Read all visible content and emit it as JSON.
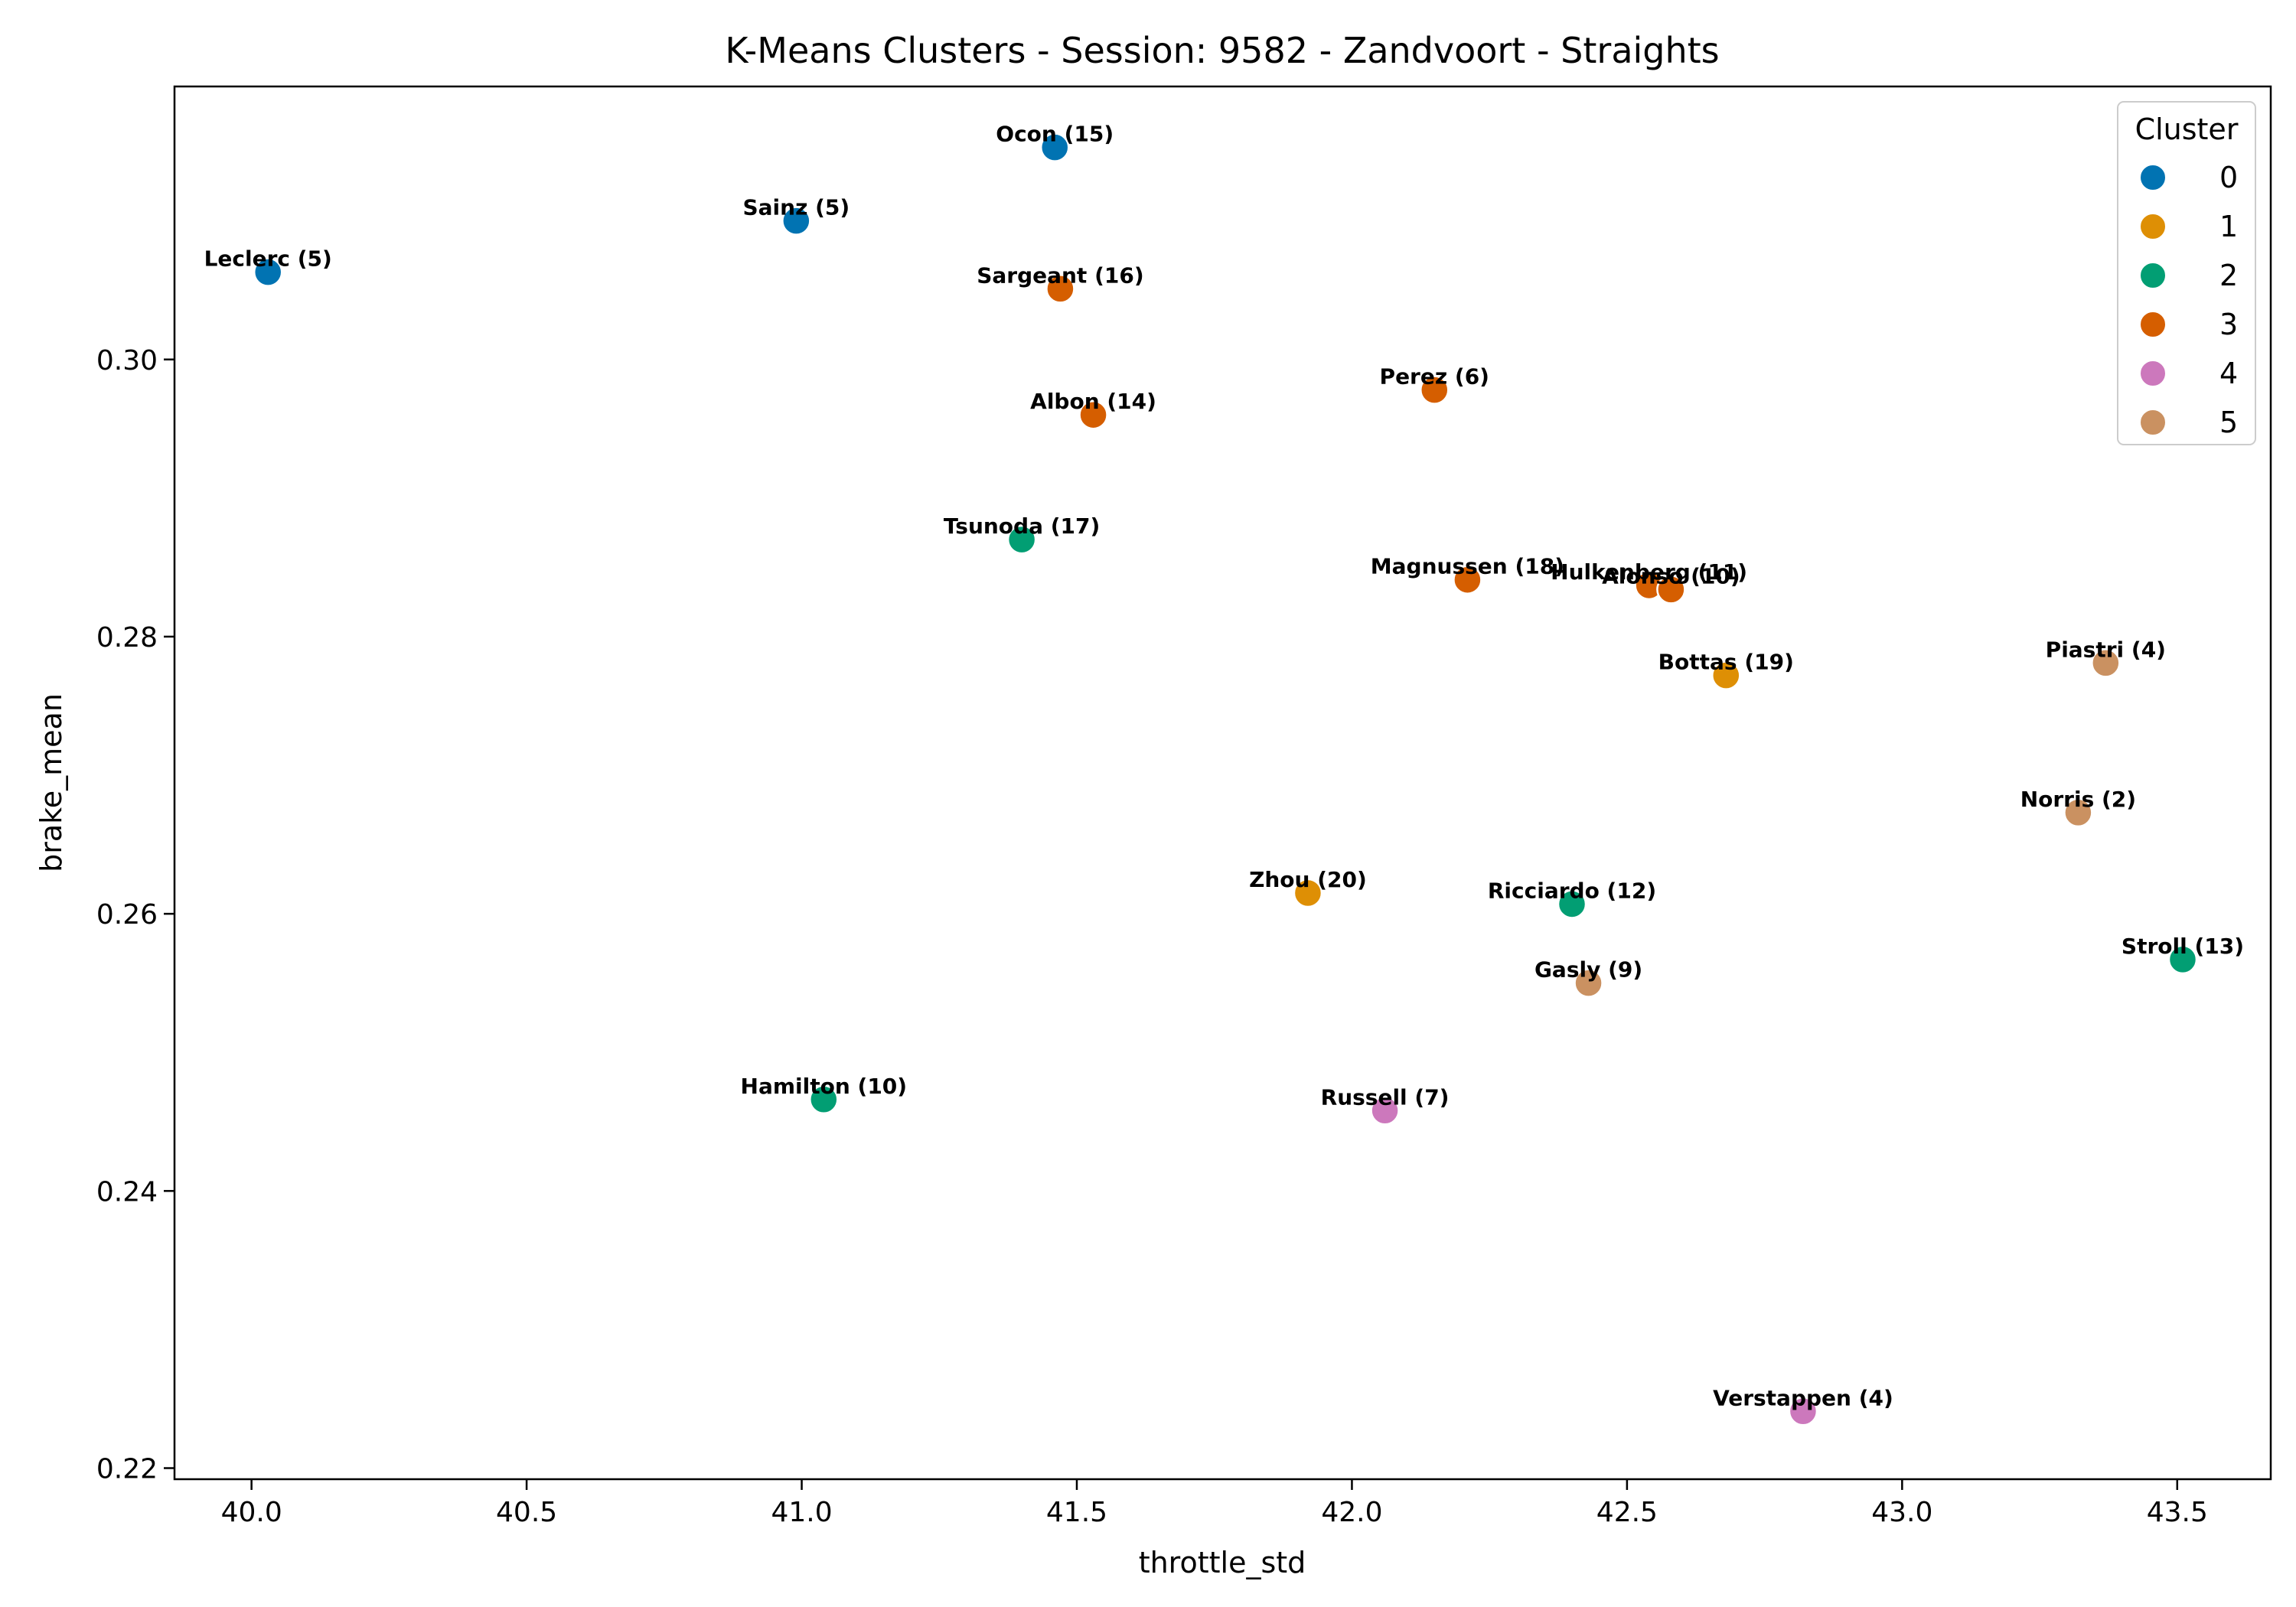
{
  "chart_data": {
    "type": "scatter",
    "title": "K-Means Clusters - Session: 9582 - Zandvoort - Straights",
    "xlabel": "throttle_std",
    "ylabel": "brake_mean",
    "xlim": [
      39.86,
      43.67
    ],
    "ylim": [
      0.2192,
      0.3197
    ],
    "xticks": [
      40.0,
      40.5,
      41.0,
      41.5,
      42.0,
      42.5,
      43.0,
      43.5
    ],
    "xtick_labels": [
      "40.0",
      "40.5",
      "41.0",
      "41.5",
      "42.0",
      "42.5",
      "43.0",
      "43.5"
    ],
    "yticks": [
      0.22,
      0.24,
      0.26,
      0.28,
      0.3
    ],
    "ytick_labels": [
      "0.22",
      "0.24",
      "0.26",
      "0.28",
      "0.30"
    ],
    "grid": false,
    "legend": {
      "title": "Cluster",
      "placement": "top-right",
      "entries": [
        {
          "label": "0",
          "color": "#0173b2"
        },
        {
          "label": "1",
          "color": "#de8f05"
        },
        {
          "label": "2",
          "color": "#029e73"
        },
        {
          "label": "3",
          "color": "#d55e00"
        },
        {
          "label": "4",
          "color": "#cc78bc"
        },
        {
          "label": "5",
          "color": "#ca9161"
        }
      ]
    },
    "points": [
      {
        "label": "Leclerc (5)",
        "x": 40.03,
        "y": 0.3063,
        "cluster": 0
      },
      {
        "label": "Sainz (5)",
        "x": 40.99,
        "y": 0.31,
        "cluster": 0
      },
      {
        "label": "Ocon (15)",
        "x": 41.46,
        "y": 0.3153,
        "cluster": 0
      },
      {
        "label": "Zhou (20)",
        "x": 41.92,
        "y": 0.2615,
        "cluster": 1
      },
      {
        "label": "Bottas (19)",
        "x": 42.68,
        "y": 0.2772,
        "cluster": 1
      },
      {
        "label": "Tsunoda (17)",
        "x": 41.4,
        "y": 0.287,
        "cluster": 2
      },
      {
        "label": "Hamilton (10)",
        "x": 41.04,
        "y": 0.2466,
        "cluster": 2
      },
      {
        "label": "Ricciardo (12)",
        "x": 42.4,
        "y": 0.2607,
        "cluster": 2
      },
      {
        "label": "Stroll (13)",
        "x": 43.51,
        "y": 0.2567,
        "cluster": 2
      },
      {
        "label": "Sargeant (16)",
        "x": 41.47,
        "y": 0.3051,
        "cluster": 3
      },
      {
        "label": "Albon (14)",
        "x": 41.53,
        "y": 0.296,
        "cluster": 3
      },
      {
        "label": "Perez (6)",
        "x": 42.15,
        "y": 0.2978,
        "cluster": 3
      },
      {
        "label": "Magnussen (18)",
        "x": 42.21,
        "y": 0.2841,
        "cluster": 3
      },
      {
        "label": "Hulkenberg (11)",
        "x": 42.54,
        "y": 0.2837,
        "cluster": 3
      },
      {
        "label": "Alonso (10)",
        "x": 42.58,
        "y": 0.2834,
        "cluster": 3
      },
      {
        "label": "Russell (7)",
        "x": 42.06,
        "y": 0.2458,
        "cluster": 4
      },
      {
        "label": "Verstappen (4)",
        "x": 42.82,
        "y": 0.2241,
        "cluster": 4
      },
      {
        "label": "Piastri (4)",
        "x": 43.37,
        "y": 0.2781,
        "cluster": 5
      },
      {
        "label": "Norris (2)",
        "x": 43.32,
        "y": 0.2673,
        "cluster": 5
      },
      {
        "label": "Gasly (9)",
        "x": 42.43,
        "y": 0.255,
        "cluster": 5
      }
    ]
  }
}
